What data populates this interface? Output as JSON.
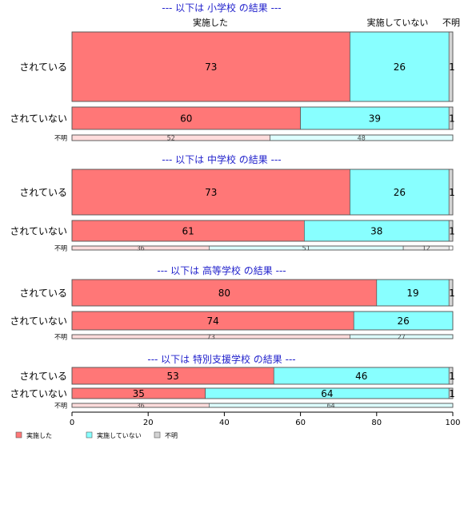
{
  "chart_data": {
    "type": "bar",
    "orientation": "horizontal",
    "stacked": true,
    "xlim": [
      0,
      100
    ],
    "x_ticks": [
      "0",
      "20",
      "40",
      "60",
      "80",
      "100"
    ],
    "series_names": [
      "実施した",
      "実施していない",
      "不明"
    ],
    "column_headers": [
      "実施した",
      "実施していない",
      "不明"
    ],
    "colors": {
      "strong": [
        "#ff7777",
        "#88ffff",
        "#d3d3d3"
      ],
      "light": [
        "#ffdcdc",
        "#ddffff",
        "#ececec"
      ],
      "border": "#555555",
      "title": "#2222cc"
    },
    "legend": {
      "position": "bottom-left",
      "items": [
        {
          "label": "実施した",
          "color": "#ff7777"
        },
        {
          "label": "実施していない",
          "color": "#88ffff"
        },
        {
          "label": "不明",
          "color": "#d3d3d3"
        }
      ]
    },
    "panels": [
      {
        "title": "--- 以下は 小学校 の結果 ---",
        "rows": [
          {
            "label": "されている",
            "values": [
              73,
              26,
              1
            ],
            "labels": [
              "73",
              "26",
              "1"
            ]
          },
          {
            "label": "されていない",
            "values": [
              60,
              39,
              1
            ],
            "labels": [
              "60",
              "39",
              "1"
            ]
          },
          {
            "label": "不明",
            "values": [
              52,
              48,
              0
            ],
            "labels": [
              "52",
              "48",
              ""
            ]
          }
        ]
      },
      {
        "title": "--- 以下は 中学校 の結果 ---",
        "rows": [
          {
            "label": "されている",
            "values": [
              73,
              26,
              1
            ],
            "labels": [
              "73",
              "26",
              "1"
            ]
          },
          {
            "label": "されていない",
            "values": [
              61,
              38,
              1
            ],
            "labels": [
              "61",
              "38",
              "1"
            ]
          },
          {
            "label": "不明",
            "values": [
              36,
              51,
              12
            ],
            "labels": [
              "36",
              "51",
              "12"
            ]
          }
        ]
      },
      {
        "title": "--- 以下は 高等学校 の結果 ---",
        "rows": [
          {
            "label": "されている",
            "values": [
              80,
              19,
              1
            ],
            "labels": [
              "80",
              "19",
              "1"
            ]
          },
          {
            "label": "されていない",
            "values": [
              74,
              26,
              0
            ],
            "labels": [
              "74",
              "26",
              ""
            ]
          },
          {
            "label": "不明",
            "values": [
              73,
              27,
              0
            ],
            "labels": [
              "73",
              "27",
              ""
            ]
          }
        ]
      },
      {
        "title": "--- 以下は 特別支援学校 の結果 ---",
        "rows": [
          {
            "label": "されている",
            "values": [
              53,
              46,
              1
            ],
            "labels": [
              "53",
              "46",
              "1"
            ]
          },
          {
            "label": "されていない",
            "values": [
              35,
              64,
              1
            ],
            "labels": [
              "35",
              "64",
              "1"
            ]
          },
          {
            "label": "不明",
            "values": [
              36,
              64,
              0
            ],
            "labels": [
              "36",
              "64",
              ""
            ]
          }
        ]
      }
    ]
  }
}
